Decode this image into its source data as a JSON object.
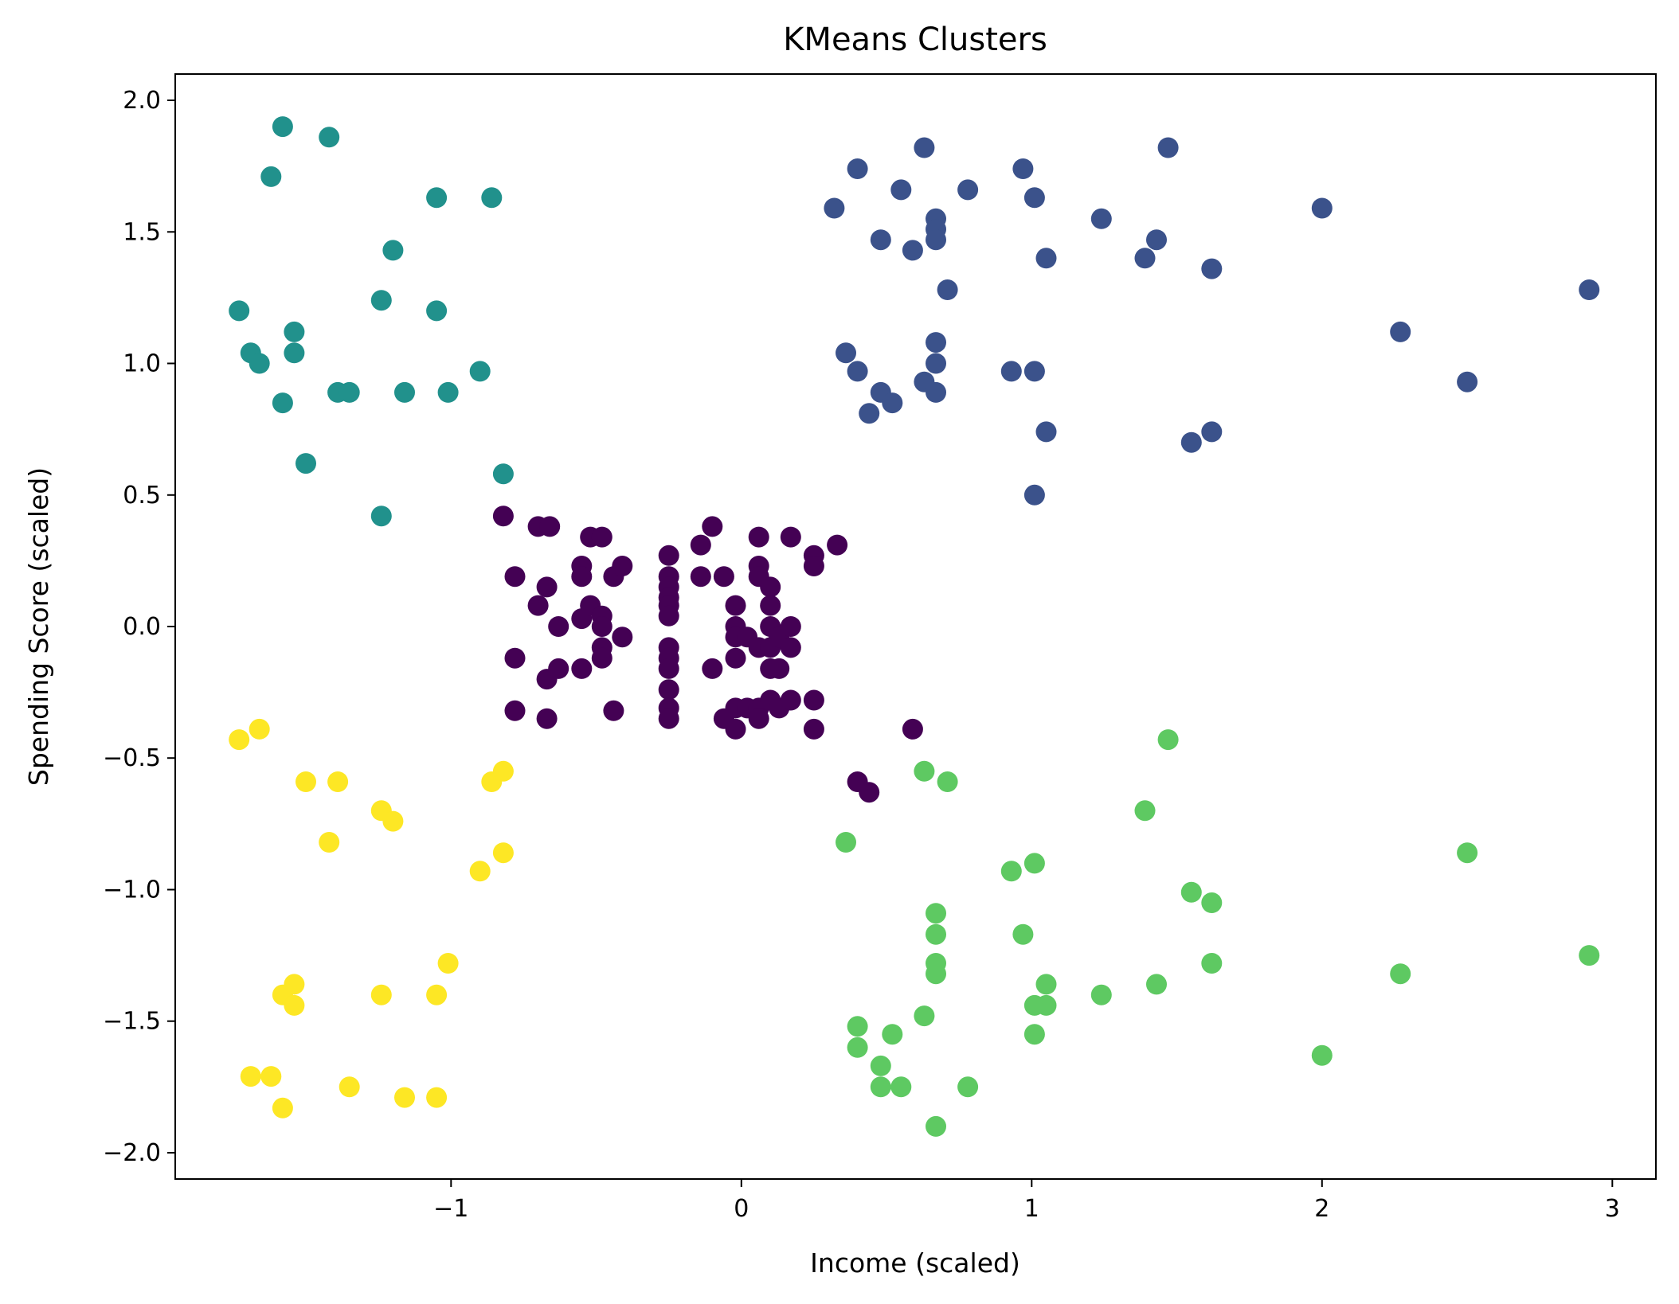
{
  "chart_data": {
    "type": "scatter",
    "title": "KMeans Clusters",
    "xlabel": "Income (scaled)",
    "ylabel": "Spending Score (scaled)",
    "xlim": [
      -1.95,
      3.15
    ],
    "ylim": [
      -2.1,
      2.1
    ],
    "x_ticks": [
      -1,
      0,
      1,
      2,
      3
    ],
    "x_tick_labels": [
      "−1",
      "0",
      "1",
      "2",
      "3"
    ],
    "y_ticks": [
      2.0,
      1.5,
      1.0,
      0.5,
      0.0,
      -0.5,
      -1.0,
      -1.5,
      -2.0
    ],
    "y_tick_labels": [
      "2.0",
      "1.5",
      "1.0",
      "0.5",
      "0.0",
      "−0.5",
      "−1.0",
      "−1.5",
      "−2.0"
    ],
    "grid": false,
    "legend": "none",
    "series": [
      {
        "color": "#440154",
        "points": [
          [
            -0.82,
            0.42
          ],
          [
            -0.78,
            0.19
          ],
          [
            -0.78,
            -0.12
          ],
          [
            -0.78,
            -0.32
          ],
          [
            -0.7,
            0.38
          ],
          [
            -0.7,
            0.08
          ],
          [
            -0.66,
            0.38
          ],
          [
            -0.67,
            0.15
          ],
          [
            -0.67,
            -0.2
          ],
          [
            -0.67,
            -0.35
          ],
          [
            -0.63,
            0.0
          ],
          [
            -0.63,
            -0.16
          ],
          [
            -0.55,
            0.23
          ],
          [
            -0.55,
            0.19
          ],
          [
            -0.55,
            0.03
          ],
          [
            -0.55,
            -0.16
          ],
          [
            -0.52,
            0.34
          ],
          [
            -0.52,
            0.08
          ],
          [
            -0.48,
            0.34
          ],
          [
            -0.48,
            0.04
          ],
          [
            -0.48,
            0.0
          ],
          [
            -0.48,
            -0.08
          ],
          [
            -0.48,
            -0.12
          ],
          [
            -0.44,
            0.19
          ],
          [
            -0.44,
            -0.32
          ],
          [
            -0.41,
            0.23
          ],
          [
            -0.41,
            -0.04
          ],
          [
            -0.25,
            0.27
          ],
          [
            -0.25,
            0.19
          ],
          [
            -0.25,
            0.15
          ],
          [
            -0.25,
            0.11
          ],
          [
            -0.25,
            0.08
          ],
          [
            -0.25,
            0.04
          ],
          [
            -0.25,
            -0.08
          ],
          [
            -0.25,
            -0.12
          ],
          [
            -0.25,
            -0.16
          ],
          [
            -0.25,
            -0.24
          ],
          [
            -0.25,
            -0.31
          ],
          [
            -0.25,
            -0.35
          ],
          [
            -0.14,
            0.31
          ],
          [
            -0.14,
            0.19
          ],
          [
            -0.1,
            0.38
          ],
          [
            -0.1,
            -0.16
          ],
          [
            -0.06,
            0.19
          ],
          [
            -0.06,
            -0.35
          ],
          [
            -0.02,
            0.08
          ],
          [
            -0.02,
            0.0
          ],
          [
            -0.02,
            -0.04
          ],
          [
            -0.02,
            -0.12
          ],
          [
            -0.02,
            -0.31
          ],
          [
            -0.02,
            -0.39
          ],
          [
            0.02,
            -0.31
          ],
          [
            0.02,
            -0.04
          ],
          [
            0.06,
            0.34
          ],
          [
            0.06,
            0.23
          ],
          [
            0.06,
            0.19
          ],
          [
            0.06,
            -0.08
          ],
          [
            0.06,
            -0.31
          ],
          [
            0.06,
            -0.35
          ],
          [
            0.1,
            0.15
          ],
          [
            0.1,
            0.08
          ],
          [
            0.1,
            0.0
          ],
          [
            0.1,
            -0.08
          ],
          [
            0.1,
            -0.16
          ],
          [
            0.1,
            -0.28
          ],
          [
            0.13,
            -0.04
          ],
          [
            0.13,
            -0.16
          ],
          [
            0.13,
            -0.31
          ],
          [
            0.17,
            0.34
          ],
          [
            0.17,
            0.0
          ],
          [
            0.17,
            -0.08
          ],
          [
            0.17,
            -0.28
          ],
          [
            0.25,
            0.27
          ],
          [
            0.25,
            0.23
          ],
          [
            0.25,
            -0.28
          ],
          [
            0.25,
            -0.39
          ],
          [
            0.33,
            0.31
          ],
          [
            0.59,
            -0.39
          ],
          [
            0.4,
            -0.59
          ],
          [
            0.44,
            -0.63
          ]
        ]
      },
      {
        "color": "#3b528b",
        "points": [
          [
            0.32,
            1.59
          ],
          [
            0.4,
            1.74
          ],
          [
            0.48,
            1.47
          ],
          [
            0.55,
            1.66
          ],
          [
            0.59,
            1.43
          ],
          [
            0.63,
            1.82
          ],
          [
            0.67,
            1.55
          ],
          [
            0.67,
            1.51
          ],
          [
            0.67,
            1.47
          ],
          [
            0.71,
            1.28
          ],
          [
            0.78,
            1.66
          ],
          [
            0.97,
            1.74
          ],
          [
            1.01,
            1.63
          ],
          [
            1.05,
            1.4
          ],
          [
            1.24,
            1.55
          ],
          [
            1.39,
            1.4
          ],
          [
            1.43,
            1.47
          ],
          [
            1.47,
            1.82
          ],
          [
            1.62,
            1.36
          ],
          [
            2.0,
            1.59
          ],
          [
            2.92,
            1.28
          ],
          [
            2.27,
            1.12
          ],
          [
            2.5,
            0.93
          ],
          [
            0.36,
            1.04
          ],
          [
            0.4,
            0.97
          ],
          [
            0.44,
            0.81
          ],
          [
            0.48,
            0.89
          ],
          [
            0.52,
            0.85
          ],
          [
            0.63,
            0.93
          ],
          [
            0.67,
            1.08
          ],
          [
            0.67,
            1.0
          ],
          [
            0.67,
            0.89
          ],
          [
            0.93,
            0.97
          ],
          [
            1.01,
            0.97
          ],
          [
            1.05,
            0.74
          ],
          [
            1.01,
            0.5
          ],
          [
            1.55,
            0.7
          ],
          [
            1.62,
            0.74
          ]
        ]
      },
      {
        "color": "#21918c",
        "points": [
          [
            -1.58,
            1.9
          ],
          [
            -1.42,
            1.86
          ],
          [
            -1.62,
            1.71
          ],
          [
            -1.05,
            1.63
          ],
          [
            -0.86,
            1.63
          ],
          [
            -1.2,
            1.43
          ],
          [
            -1.73,
            1.2
          ],
          [
            -1.05,
            1.2
          ],
          [
            -1.24,
            1.24
          ],
          [
            -1.54,
            1.12
          ],
          [
            -1.69,
            1.04
          ],
          [
            -1.54,
            1.04
          ],
          [
            -1.66,
            1.0
          ],
          [
            -0.9,
            0.97
          ],
          [
            -1.39,
            0.89
          ],
          [
            -1.35,
            0.89
          ],
          [
            -1.16,
            0.89
          ],
          [
            -1.01,
            0.89
          ],
          [
            -1.58,
            0.85
          ],
          [
            -1.5,
            0.62
          ],
          [
            -0.82,
            0.58
          ],
          [
            -1.24,
            0.42
          ]
        ]
      },
      {
        "color": "#5ec962",
        "points": [
          [
            1.47,
            -0.43
          ],
          [
            0.63,
            -0.55
          ],
          [
            0.71,
            -0.59
          ],
          [
            1.39,
            -0.7
          ],
          [
            0.36,
            -0.82
          ],
          [
            2.5,
            -0.86
          ],
          [
            1.01,
            -0.9
          ],
          [
            0.93,
            -0.93
          ],
          [
            1.55,
            -1.01
          ],
          [
            1.62,
            -1.05
          ],
          [
            0.67,
            -1.09
          ],
          [
            0.67,
            -1.17
          ],
          [
            0.97,
            -1.17
          ],
          [
            2.92,
            -1.25
          ],
          [
            0.67,
            -1.28
          ],
          [
            0.67,
            -1.32
          ],
          [
            1.62,
            -1.28
          ],
          [
            2.27,
            -1.32
          ],
          [
            1.05,
            -1.36
          ],
          [
            1.43,
            -1.36
          ],
          [
            1.24,
            -1.4
          ],
          [
            1.01,
            -1.44
          ],
          [
            1.05,
            -1.44
          ],
          [
            0.63,
            -1.48
          ],
          [
            0.4,
            -1.52
          ],
          [
            0.52,
            -1.55
          ],
          [
            1.01,
            -1.55
          ],
          [
            0.4,
            -1.6
          ],
          [
            2.0,
            -1.63
          ],
          [
            0.48,
            -1.67
          ],
          [
            0.48,
            -1.75
          ],
          [
            0.55,
            -1.75
          ],
          [
            0.78,
            -1.75
          ],
          [
            0.67,
            -1.9
          ]
        ]
      },
      {
        "color": "#fde725",
        "points": [
          [
            -1.73,
            -0.43
          ],
          [
            -1.66,
            -0.39
          ],
          [
            -1.5,
            -0.59
          ],
          [
            -1.39,
            -0.59
          ],
          [
            -0.86,
            -0.59
          ],
          [
            -0.82,
            -0.55
          ],
          [
            -1.24,
            -0.7
          ],
          [
            -1.2,
            -0.74
          ],
          [
            -1.42,
            -0.82
          ],
          [
            -0.82,
            -0.86
          ],
          [
            -0.9,
            -0.93
          ],
          [
            -1.01,
            -1.28
          ],
          [
            -1.54,
            -1.36
          ],
          [
            -1.58,
            -1.4
          ],
          [
            -1.54,
            -1.44
          ],
          [
            -1.24,
            -1.4
          ],
          [
            -1.05,
            -1.4
          ],
          [
            -1.69,
            -1.71
          ],
          [
            -1.62,
            -1.71
          ],
          [
            -1.35,
            -1.75
          ],
          [
            -1.16,
            -1.79
          ],
          [
            -1.05,
            -1.79
          ],
          [
            -1.58,
            -1.83
          ]
        ]
      }
    ]
  }
}
